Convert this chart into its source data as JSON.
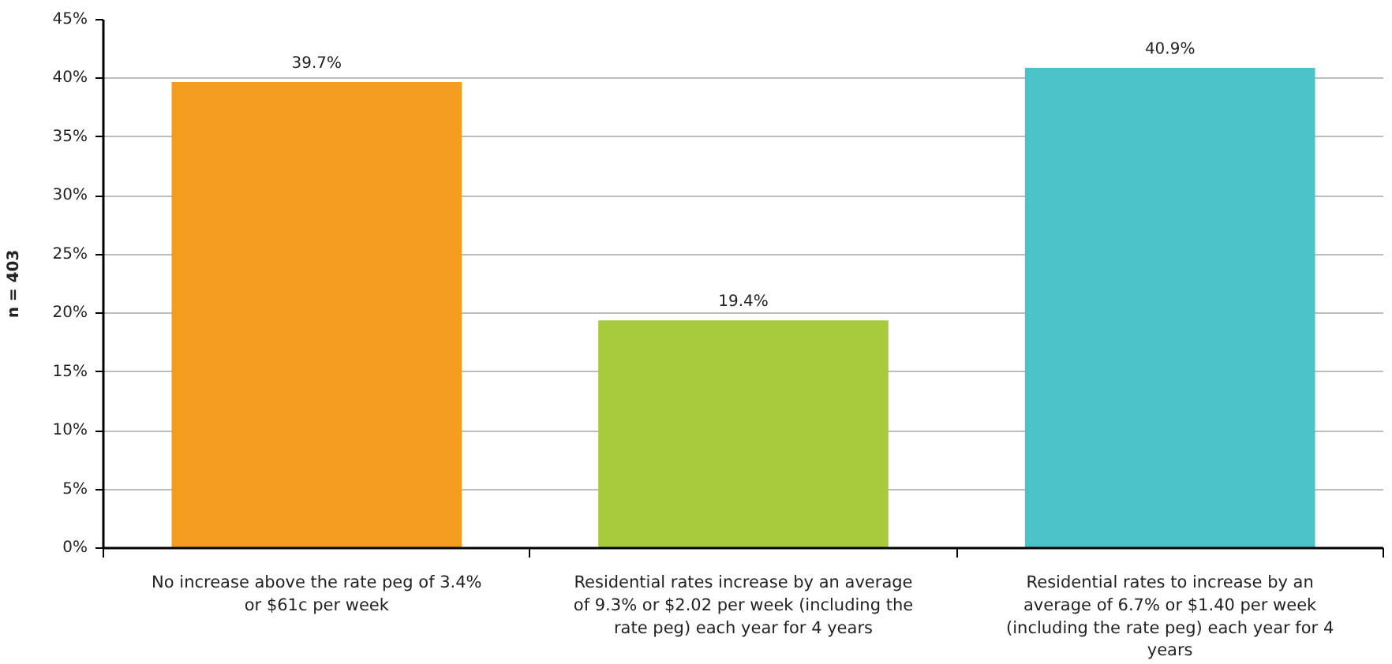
{
  "chart_data": {
    "type": "bar",
    "categories": [
      "No increase above the rate peg of 3.4% or $61c per week",
      "Residential rates increase by an average of 9.3% or $2.02 per week (including the rate peg) each year for 4 years",
      "Residential rates to increase by an average of 6.7% or $1.40 per week (including the rate peg) each year for 4 years"
    ],
    "values": [
      39.7,
      19.4,
      40.9
    ],
    "colors": [
      "#f49c1f",
      "#a7cb3c",
      "#4bc1c8"
    ],
    "value_labels": [
      "39.7%",
      "19.4%",
      "40.9%"
    ],
    "ylabel": "n = 403",
    "ylim": [
      0,
      45
    ],
    "yticks": [
      {
        "value": 0,
        "label": "0%"
      },
      {
        "value": 5,
        "label": "5%"
      },
      {
        "value": 10,
        "label": "10%"
      },
      {
        "value": 15,
        "label": "15%"
      },
      {
        "value": 20,
        "label": "20%"
      },
      {
        "value": 25,
        "label": "25%"
      },
      {
        "value": 30,
        "label": "30%"
      },
      {
        "value": 35,
        "label": "35%"
      },
      {
        "value": 40,
        "label": "40%"
      },
      {
        "value": 45,
        "label": "45%"
      }
    ],
    "grid": "y"
  }
}
